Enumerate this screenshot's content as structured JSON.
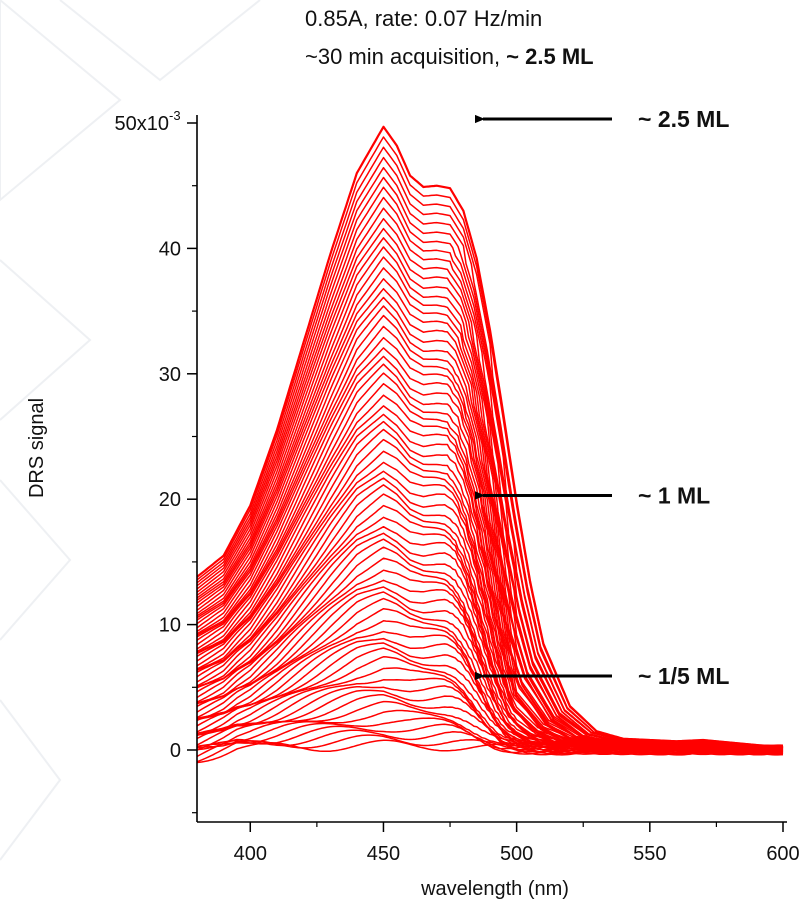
{
  "header": {
    "line1": "0.85A, rate: 0.07 Hz/min",
    "line2_prefix": "~30 min acquisition, ",
    "line2_bold": "~ 2.5 ML"
  },
  "chart_data": {
    "type": "line",
    "xlabel": "wavelength (nm)",
    "ylabel": "DRS signal",
    "xlim": [
      380,
      600
    ],
    "ylim": [
      -0.008,
      0.05
    ],
    "x_ticks": [
      400,
      450,
      500,
      550,
      600
    ],
    "y_ticks": [
      0,
      0.01,
      0.02,
      0.03,
      0.04,
      0.05
    ],
    "y_tick_labels": [
      "0",
      "10",
      "20",
      "30",
      "40",
      "50x10"
    ],
    "y_exponent": "-3",
    "grid": false,
    "series_color": "#ff0000",
    "x": [
      380,
      390,
      400,
      410,
      420,
      430,
      440,
      450,
      455,
      460,
      465,
      470,
      475,
      480,
      485,
      490,
      495,
      500,
      505,
      510,
      520,
      530,
      540,
      550,
      560,
      570,
      580,
      590,
      600
    ],
    "top_curve_y": [
      0.0138,
      0.0155,
      0.0195,
      0.0255,
      0.0325,
      0.0395,
      0.046,
      0.0497,
      0.0482,
      0.0458,
      0.0449,
      0.045,
      0.0448,
      0.043,
      0.0392,
      0.0335,
      0.0268,
      0.0198,
      0.0135,
      0.0085,
      0.0035,
      0.0015,
      0.0009,
      0.0008,
      0.0007,
      0.0008,
      0.0006,
      0.0004,
      0.0002
    ],
    "annotations": [
      {
        "label": "~ 2.5 ML",
        "y": 0.0505
      },
      {
        "label": "~ 1 ML",
        "y": 0.0203
      },
      {
        "label": "~ 1/5 ML",
        "y": 0.0059
      }
    ]
  }
}
